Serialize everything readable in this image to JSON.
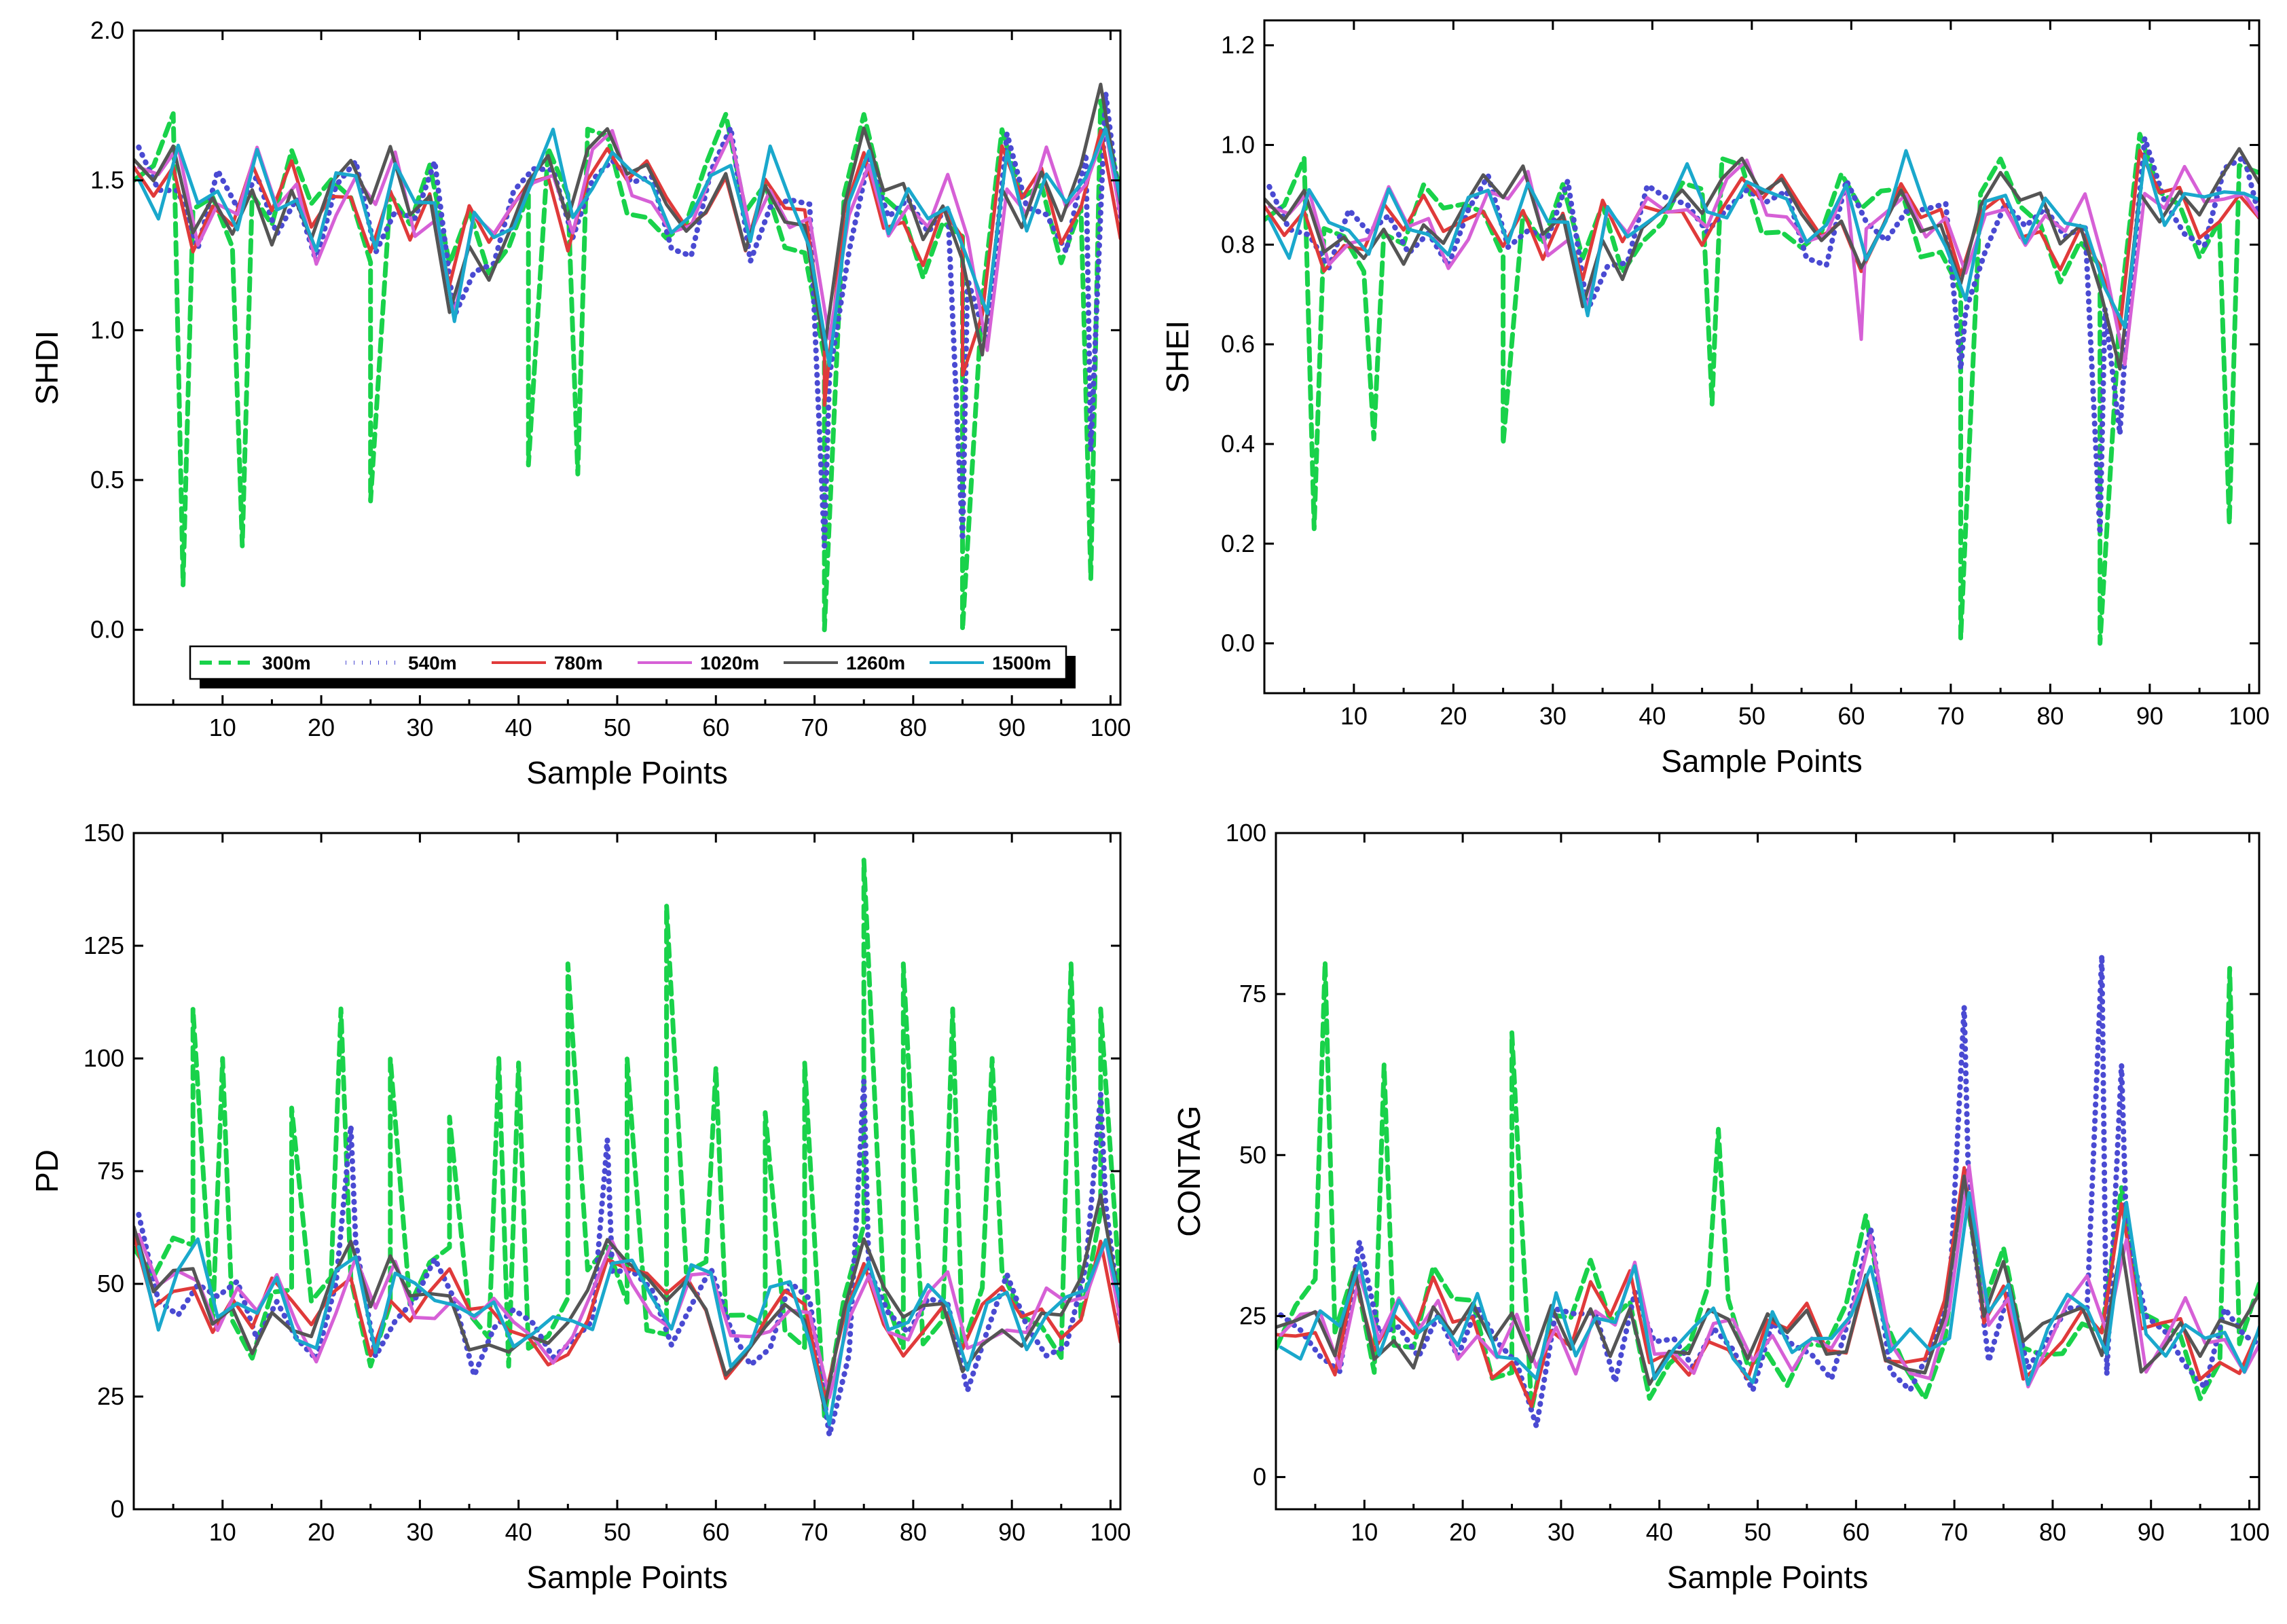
{
  "legend": {
    "series": [
      {
        "name": "300m",
        "color": "#19d24a",
        "dash": "dashed"
      },
      {
        "name": "540m",
        "color": "#4a4ad2",
        "dash": "dotted"
      },
      {
        "name": "780m",
        "color": "#e03a3a",
        "dash": "solid"
      },
      {
        "name": "1020m",
        "color": "#d660d6",
        "dash": "solid"
      },
      {
        "name": "1260m",
        "color": "#555555",
        "dash": "solid"
      },
      {
        "name": "1500m",
        "color": "#1aa8cc",
        "dash": "solid"
      }
    ]
  },
  "chart_data": [
    {
      "type": "line",
      "id": "shdi",
      "ylabel": "SHDI",
      "xlabel": "Sample Points",
      "xlim": [
        1,
        101
      ],
      "ylim": [
        -0.25,
        2.0
      ],
      "xticks": [
        10,
        20,
        30,
        40,
        50,
        60,
        70,
        80,
        90,
        100
      ],
      "yticks": [
        "0.0",
        "0.5",
        "1.0",
        "1.5",
        "2.0"
      ],
      "base": [
        [
          1,
          1.5
        ],
        [
          3,
          1.45
        ],
        [
          5,
          1.6
        ],
        [
          7,
          1.35
        ],
        [
          9,
          1.5
        ],
        [
          11,
          1.4
        ],
        [
          13,
          1.55
        ],
        [
          15,
          1.35
        ],
        [
          17,
          1.5
        ],
        [
          19,
          1.3
        ],
        [
          21,
          1.45
        ],
        [
          23,
          1.5
        ],
        [
          25,
          1.35
        ],
        [
          27,
          1.55
        ],
        [
          29,
          1.35
        ],
        [
          31,
          1.45
        ],
        [
          33,
          1.1
        ],
        [
          35,
          1.35
        ],
        [
          37,
          1.25
        ],
        [
          39,
          1.4
        ],
        [
          41,
          1.55
        ],
        [
          43,
          1.6
        ],
        [
          45,
          1.35
        ],
        [
          47,
          1.55
        ],
        [
          49,
          1.6
        ],
        [
          51,
          1.45
        ],
        [
          53,
          1.5
        ],
        [
          55,
          1.4
        ],
        [
          57,
          1.35
        ],
        [
          59,
          1.45
        ],
        [
          61,
          1.6
        ],
        [
          63,
          1.35
        ],
        [
          65,
          1.55
        ],
        [
          67,
          1.4
        ],
        [
          69,
          1.35
        ],
        [
          71,
          0.9
        ],
        [
          73,
          1.35
        ],
        [
          75,
          1.6
        ],
        [
          77,
          1.4
        ],
        [
          79,
          1.45
        ],
        [
          81,
          1.3
        ],
        [
          83,
          1.45
        ],
        [
          85,
          1.3
        ],
        [
          87,
          1.0
        ],
        [
          89,
          1.55
        ],
        [
          91,
          1.4
        ],
        [
          93,
          1.55
        ],
        [
          95,
          1.35
        ],
        [
          97,
          1.5
        ],
        [
          99,
          1.75
        ],
        [
          101,
          1.35
        ]
      ],
      "dips": [
        {
          "series": "300m",
          "points": [
            [
              6,
              0.15
            ],
            [
              12,
              0.28
            ],
            [
              25,
              0.43
            ],
            [
              41,
              0.55
            ],
            [
              46,
              0.52
            ],
            [
              71,
              0.0
            ],
            [
              85,
              0.0
            ],
            [
              98,
              0.17
            ]
          ]
        },
        {
          "series": "540m",
          "points": [
            [
              71,
              0.28
            ],
            [
              85,
              0.3
            ],
            [
              98,
              0.6
            ]
          ]
        },
        {
          "series": "780m",
          "points": [
            [
              71,
              0.75
            ],
            [
              85,
              0.85
            ]
          ]
        }
      ],
      "legend_position": "bottom-left"
    },
    {
      "type": "line",
      "id": "shei",
      "ylabel": "SHEI",
      "xlabel": "Sample Points",
      "xlim": [
        1,
        101
      ],
      "ylim": [
        -0.1,
        1.25
      ],
      "xticks": [
        10,
        20,
        30,
        40,
        50,
        60,
        70,
        80,
        90,
        100
      ],
      "yticks": [
        "0.0",
        "0.2",
        "0.4",
        "0.6",
        "0.8",
        "1.0",
        "1.2"
      ],
      "base": [
        [
          1,
          0.85
        ],
        [
          3,
          0.82
        ],
        [
          5,
          0.9
        ],
        [
          7,
          0.8
        ],
        [
          9,
          0.85
        ],
        [
          11,
          0.82
        ],
        [
          13,
          0.88
        ],
        [
          15,
          0.8
        ],
        [
          17,
          0.86
        ],
        [
          19,
          0.8
        ],
        [
          21,
          0.85
        ],
        [
          23,
          0.9
        ],
        [
          25,
          0.85
        ],
        [
          27,
          0.92
        ],
        [
          29,
          0.8
        ],
        [
          31,
          0.86
        ],
        [
          33,
          0.7
        ],
        [
          35,
          0.85
        ],
        [
          37,
          0.78
        ],
        [
          39,
          0.88
        ],
        [
          41,
          0.9
        ],
        [
          43,
          0.92
        ],
        [
          45,
          0.85
        ],
        [
          47,
          0.9
        ],
        [
          49,
          0.93
        ],
        [
          51,
          0.86
        ],
        [
          53,
          0.9
        ],
        [
          55,
          0.85
        ],
        [
          57,
          0.82
        ],
        [
          59,
          0.88
        ],
        [
          61,
          0.8
        ],
        [
          63,
          0.88
        ],
        [
          65,
          0.95
        ],
        [
          67,
          0.85
        ],
        [
          69,
          0.84
        ],
        [
          71,
          0.7
        ],
        [
          73,
          0.84
        ],
        [
          75,
          0.9
        ],
        [
          77,
          0.85
        ],
        [
          79,
          0.88
        ],
        [
          81,
          0.8
        ],
        [
          83,
          0.86
        ],
        [
          85,
          0.75
        ],
        [
          87,
          0.6
        ],
        [
          89,
          0.95
        ],
        [
          91,
          0.88
        ],
        [
          93,
          0.92
        ],
        [
          95,
          0.85
        ],
        [
          97,
          0.9
        ],
        [
          99,
          0.95
        ],
        [
          101,
          0.88
        ]
      ],
      "dips": [
        {
          "series": "300m",
          "points": [
            [
              6,
              0.23
            ],
            [
              12,
              0.41
            ],
            [
              25,
              0.4
            ],
            [
              46,
              0.48
            ],
            [
              71,
              0.01
            ],
            [
              85,
              0.0
            ],
            [
              98,
              0.24
            ]
          ]
        },
        {
          "series": "540m",
          "points": [
            [
              71,
              0.55
            ],
            [
              85,
              0.22
            ],
            [
              87,
              0.42
            ]
          ]
        },
        {
          "series": "1020m",
          "points": [
            [
              61,
              0.61
            ]
          ]
        }
      ],
      "legend_position": "none"
    },
    {
      "type": "line",
      "id": "pd",
      "ylabel": "PD",
      "xlabel": "Sample Points",
      "xlim": [
        1,
        101
      ],
      "ylim": [
        0,
        150
      ],
      "xticks": [
        10,
        20,
        30,
        40,
        50,
        60,
        70,
        80,
        90,
        100
      ],
      "yticks": [
        "0",
        "25",
        "50",
        "75",
        "100",
        "125",
        "150"
      ],
      "base": [
        [
          1,
          58
        ],
        [
          3,
          45
        ],
        [
          5,
          52
        ],
        [
          7,
          55
        ],
        [
          9,
          45
        ],
        [
          11,
          50
        ],
        [
          13,
          40
        ],
        [
          15,
          48
        ],
        [
          17,
          42
        ],
        [
          19,
          38
        ],
        [
          21,
          48
        ],
        [
          23,
          55
        ],
        [
          25,
          40
        ],
        [
          27,
          52
        ],
        [
          29,
          45
        ],
        [
          31,
          48
        ],
        [
          33,
          50
        ],
        [
          35,
          40
        ],
        [
          37,
          42
        ],
        [
          39,
          40
        ],
        [
          41,
          42
        ],
        [
          43,
          38
        ],
        [
          45,
          40
        ],
        [
          47,
          45
        ],
        [
          49,
          55
        ],
        [
          51,
          50
        ],
        [
          53,
          48
        ],
        [
          55,
          45
        ],
        [
          57,
          52
        ],
        [
          59,
          48
        ],
        [
          61,
          35
        ],
        [
          63,
          40
        ],
        [
          65,
          45
        ],
        [
          67,
          48
        ],
        [
          69,
          42
        ],
        [
          71,
          20
        ],
        [
          73,
          40
        ],
        [
          75,
          55
        ],
        [
          77,
          45
        ],
        [
          79,
          40
        ],
        [
          81,
          45
        ],
        [
          83,
          48
        ],
        [
          85,
          35
        ],
        [
          87,
          42
        ],
        [
          89,
          45
        ],
        [
          91,
          40
        ],
        [
          93,
          45
        ],
        [
          95,
          42
        ],
        [
          97,
          48
        ],
        [
          99,
          65
        ],
        [
          101,
          40
        ]
      ],
      "peaks": [
        {
          "series": "300m",
          "points": [
            [
              7,
              111
            ],
            [
              10,
              100
            ],
            [
              17,
              89
            ],
            [
              22,
              111
            ],
            [
              27,
              100
            ],
            [
              33,
              87
            ],
            [
              38,
              100
            ],
            [
              40,
              99
            ],
            [
              45,
              121
            ],
            [
              51,
              100
            ],
            [
              55,
              134
            ],
            [
              60,
              98
            ],
            [
              65,
              88
            ],
            [
              69,
              99
            ],
            [
              75,
              144
            ],
            [
              79,
              121
            ],
            [
              84,
              111
            ],
            [
              88,
              100
            ],
            [
              96,
              121
            ],
            [
              99,
              111
            ]
          ]
        },
        {
          "series": "540m",
          "points": [
            [
              23,
              85
            ],
            [
              49,
              82
            ],
            [
              75,
              95
            ],
            [
              99,
              92
            ]
          ]
        }
      ],
      "legend_position": "none"
    },
    {
      "type": "line",
      "id": "contag",
      "ylabel": "CONTAG",
      "xlabel": "Sample Points",
      "xlim": [
        1,
        101
      ],
      "ylim": [
        -5,
        100
      ],
      "xticks": [
        10,
        20,
        30,
        40,
        50,
        60,
        70,
        80,
        90,
        100
      ],
      "yticks": [
        "0",
        "25",
        "50",
        "75",
        "100"
      ],
      "base": [
        [
          1,
          20
        ],
        [
          3,
          22
        ],
        [
          5,
          25
        ],
        [
          7,
          20
        ],
        [
          9,
          35
        ],
        [
          11,
          22
        ],
        [
          13,
          25
        ],
        [
          15,
          20
        ],
        [
          17,
          28
        ],
        [
          19,
          22
        ],
        [
          21,
          25
        ],
        [
          23,
          18
        ],
        [
          25,
          22
        ],
        [
          27,
          15
        ],
        [
          29,
          25
        ],
        [
          31,
          20
        ],
        [
          33,
          28
        ],
        [
          35,
          22
        ],
        [
          37,
          30
        ],
        [
          39,
          18
        ],
        [
          41,
          22
        ],
        [
          43,
          20
        ],
        [
          45,
          25
        ],
        [
          47,
          22
        ],
        [
          49,
          15
        ],
        [
          51,
          22
        ],
        [
          53,
          20
        ],
        [
          55,
          25
        ],
        [
          57,
          20
        ],
        [
          59,
          22
        ],
        [
          61,
          35
        ],
        [
          63,
          22
        ],
        [
          65,
          20
        ],
        [
          67,
          18
        ],
        [
          69,
          25
        ],
        [
          71,
          45
        ],
        [
          73,
          22
        ],
        [
          75,
          30
        ],
        [
          77,
          18
        ],
        [
          79,
          22
        ],
        [
          81,
          25
        ],
        [
          83,
          28
        ],
        [
          85,
          22
        ],
        [
          87,
          40
        ],
        [
          89,
          20
        ],
        [
          91,
          22
        ],
        [
          93,
          25
        ],
        [
          95,
          18
        ],
        [
          97,
          22
        ],
        [
          99,
          20
        ],
        [
          101,
          25
        ]
      ],
      "peaks": [
        {
          "series": "300m",
          "points": [
            [
              6,
              80
            ],
            [
              12,
              64
            ],
            [
              25,
              69
            ],
            [
              46,
              54
            ],
            [
              98,
              79
            ]
          ]
        },
        {
          "series": "540m",
          "points": [
            [
              71,
              73
            ],
            [
              85,
              81
            ],
            [
              87,
              64
            ]
          ]
        }
      ],
      "legend_position": "none"
    }
  ]
}
